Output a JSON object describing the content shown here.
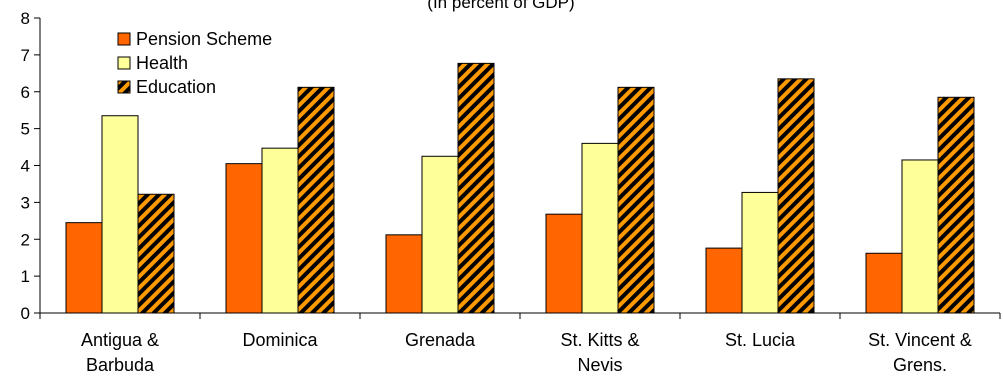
{
  "chart_data": {
    "type": "bar",
    "subtitle": "(In percent of GDP)",
    "categories": [
      [
        "Antigua &",
        "Barbuda"
      ],
      [
        "Dominica"
      ],
      [
        "Grenada"
      ],
      [
        "St. Kitts &",
        "Nevis"
      ],
      [
        "St. Lucia"
      ],
      [
        "St. Vincent &",
        "Grens."
      ]
    ],
    "series": [
      {
        "name": "Pension Scheme",
        "values": [
          2.45,
          4.05,
          2.12,
          2.68,
          1.76,
          1.62
        ]
      },
      {
        "name": "Health",
        "values": [
          5.35,
          4.47,
          4.25,
          4.6,
          3.27,
          4.15
        ]
      },
      {
        "name": "Education",
        "values": [
          3.22,
          6.12,
          6.77,
          6.12,
          6.35,
          5.85
        ]
      }
    ],
    "ylim": [
      0,
      8
    ],
    "yticks": [
      0,
      1,
      2,
      3,
      4,
      5,
      6,
      7,
      8
    ],
    "grid": false,
    "legend": "top-left",
    "colors": {
      "pension": "#ff6600",
      "health": "#ffff99",
      "education_stripe_a": "#ff9900",
      "education_stripe_b": "#000000"
    }
  }
}
